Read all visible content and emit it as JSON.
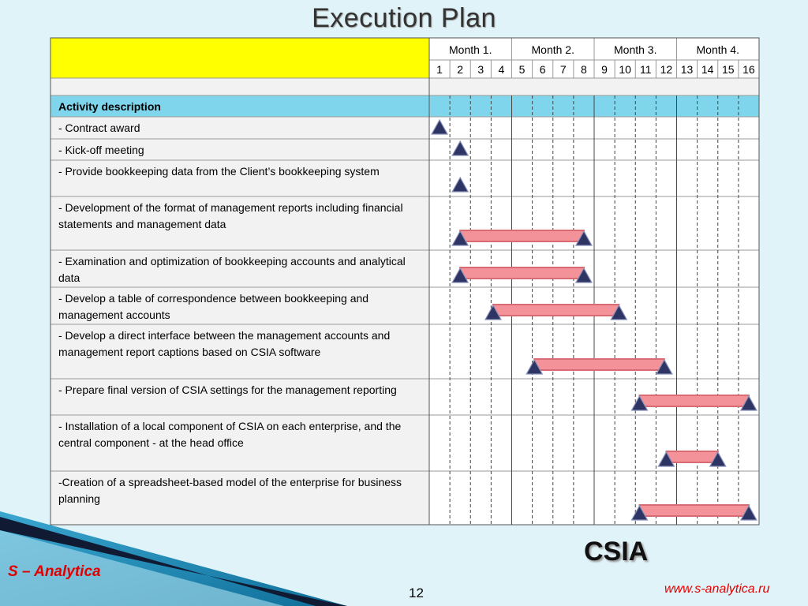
{
  "slide": {
    "title": "Execution Plan",
    "brand": "S – Analytica",
    "page_number": "12",
    "product": "CSIA",
    "website": "www.s-analytica.ru"
  },
  "colors": {
    "header_yellow": "#ffff00",
    "section_blue": "#7fd6ec",
    "bar_fill": "#f4929a",
    "bar_edge": "#d86b74",
    "marker": "#2e3564",
    "grid": "#999999",
    "row_bg": "#ffffff",
    "text_bg": "#f2f2f2"
  },
  "chart_data": {
    "type": "gantt",
    "month_headers": [
      "Month 1.",
      "Month 2.",
      "Month 3.",
      "Month 4."
    ],
    "week_labels": [
      "1",
      "2",
      "3",
      "4",
      "5",
      "6",
      "7",
      "8",
      "9",
      "10",
      "11",
      "12",
      "13",
      "14",
      "15",
      "16"
    ],
    "section_label": "Activity description",
    "tasks": [
      {
        "name": "- Contract award",
        "start": 1.0,
        "end": 1.0,
        "milestone": true
      },
      {
        "name": "- Kick-off meeting",
        "start": 2.0,
        "end": 2.0,
        "milestone": true
      },
      {
        "name": "- Provide bookkeeping data from the Client’s bookkeeping system",
        "start": 2.0,
        "end": 2.0,
        "milestone": true
      },
      {
        "name": "- Development of the format of management reports including financial statements and management data",
        "start": 2.0,
        "end": 8.0,
        "milestone": false
      },
      {
        "name": "- Examination and optimization of bookkeeping accounts and analytical data",
        "start": 2.0,
        "end": 8.0,
        "milestone": false
      },
      {
        "name": "- Develop a table of correspondence between bookkeeping and management accounts",
        "start": 3.6,
        "end": 9.7,
        "milestone": false
      },
      {
        "name": "- Develop a direct interface between the management accounts and management report captions based on CSIA software",
        "start": 5.6,
        "end": 11.9,
        "milestone": false
      },
      {
        "name": "- Prepare final version of CSIA settings for the management reporting",
        "start": 10.7,
        "end": 16.0,
        "milestone": false
      },
      {
        "name": "- Installation of a local component of CSIA on each enterprise, and the central component - at the head office",
        "start": 12.0,
        "end": 14.5,
        "milestone": false
      },
      {
        "name": "-Creation of a spreadsheet-based model of the enterprise for business planning",
        "start": 10.7,
        "end": 16.0,
        "milestone": false
      }
    ]
  }
}
